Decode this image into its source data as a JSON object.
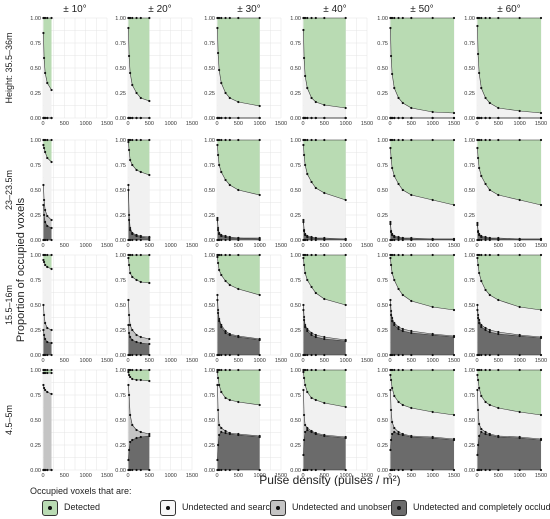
{
  "figure": {
    "xlabel": "Pulse density (pulses / m²)",
    "ylabel": "Proportion of occupied voxels",
    "columns": [
      "± 10°",
      "± 20°",
      "± 30°",
      "± 40°",
      "± 50°",
      "± 60°"
    ],
    "rows": [
      "Height:  35.5–36m",
      "23–23.5m",
      "15.5–16m",
      "4.5–5m"
    ],
    "y_ticks": [
      "0.00",
      "0.25",
      "0.50",
      "0.75",
      "1.00"
    ],
    "x_ticks": [
      "0",
      "500",
      "1000",
      "1500"
    ]
  },
  "legend": {
    "title": "Occupied voxels that are:",
    "items": [
      {
        "label": "Detected",
        "color": "#b9dbb3"
      },
      {
        "label": "Undetected and searched",
        "color": "#f1f1f1"
      },
      {
        "label": "Undetected and unobserved",
        "color": "#c4c4c4"
      },
      {
        "label": "Undetected and completely occluded",
        "color": "#6b6b6b"
      }
    ]
  },
  "chart_data": {
    "type": "area",
    "stacking": "cumulative proportion",
    "xlim": [
      0,
      1500
    ],
    "ylim": [
      0,
      1
    ],
    "grid": true,
    "colors": {
      "detected": "#b9dbb3",
      "searched": "#f1f1f1",
      "unobserved": "#c4c4c4",
      "occluded": "#6b6b6b"
    },
    "panels": [
      {
        "row": "Height:  35.5–36m",
        "column": "± 10°",
        "x": [
          10,
          25,
          50,
          100,
          200
        ],
        "occluded_upper": [
          0,
          0,
          0,
          0,
          0
        ],
        "unobserved_upper": [
          0,
          0,
          0,
          0,
          0
        ],
        "searched_upper": [
          0.85,
          0.6,
          0.45,
          0.35,
          0.28
        ]
      },
      {
        "row": "Height:  35.5–36m",
        "column": "± 20°",
        "x": [
          10,
          25,
          50,
          100,
          200,
          300,
          500
        ],
        "occluded_upper": [
          0,
          0,
          0,
          0,
          0,
          0,
          0
        ],
        "unobserved_upper": [
          0,
          0,
          0,
          0,
          0,
          0,
          0
        ],
        "searched_upper": [
          0.9,
          0.62,
          0.45,
          0.33,
          0.25,
          0.2,
          0.17
        ]
      },
      {
        "row": "Height:  35.5–36m",
        "column": "± 30°",
        "x": [
          10,
          25,
          50,
          100,
          200,
          300,
          500,
          1000
        ],
        "occluded_upper": [
          0,
          0,
          0,
          0,
          0,
          0,
          0,
          0
        ],
        "unobserved_upper": [
          0,
          0,
          0,
          0,
          0,
          0,
          0,
          0
        ],
        "searched_upper": [
          0.9,
          0.65,
          0.48,
          0.35,
          0.25,
          0.2,
          0.16,
          0.12
        ]
      },
      {
        "row": "Height:  35.5–36m",
        "column": "± 40°",
        "x": [
          10,
          25,
          50,
          100,
          200,
          300,
          500,
          1000
        ],
        "occluded_upper": [
          0,
          0,
          0,
          0,
          0,
          0,
          0,
          0
        ],
        "unobserved_upper": [
          0,
          0,
          0,
          0,
          0,
          0,
          0,
          0
        ],
        "searched_upper": [
          0.88,
          0.6,
          0.42,
          0.3,
          0.2,
          0.16,
          0.13,
          0.1
        ]
      },
      {
        "row": "Height:  35.5–36m",
        "column": "± 50°",
        "x": [
          10,
          25,
          50,
          100,
          200,
          300,
          500,
          1000,
          1500
        ],
        "occluded_upper": [
          0,
          0,
          0,
          0,
          0,
          0,
          0,
          0,
          0
        ],
        "unobserved_upper": [
          0,
          0,
          0,
          0,
          0,
          0,
          0,
          0,
          0
        ],
        "searched_upper": [
          0.9,
          0.62,
          0.44,
          0.3,
          0.2,
          0.15,
          0.1,
          0.06,
          0.05
        ]
      },
      {
        "row": "Height:  35.5–36m",
        "column": "± 60°",
        "x": [
          10,
          25,
          50,
          100,
          200,
          300,
          500,
          1000,
          1500
        ],
        "occluded_upper": [
          0,
          0,
          0,
          0,
          0,
          0,
          0,
          0,
          0
        ],
        "unobserved_upper": [
          0,
          0,
          0,
          0,
          0,
          0,
          0,
          0,
          0
        ],
        "searched_upper": [
          0.92,
          0.64,
          0.45,
          0.3,
          0.2,
          0.15,
          0.1,
          0.07,
          0.05
        ]
      },
      {
        "row": "23–23.5m",
        "column": "± 10°",
        "x": [
          10,
          25,
          50,
          100,
          200
        ],
        "occluded_upper": [
          0.35,
          0.25,
          0.18,
          0.14,
          0.12
        ],
        "unobserved_upper": [
          0.55,
          0.4,
          0.3,
          0.24,
          0.2
        ],
        "searched_upper": [
          0.95,
          0.92,
          0.88,
          0.82,
          0.78
        ]
      },
      {
        "row": "23–23.5m",
        "column": "± 20°",
        "x": [
          10,
          25,
          50,
          100,
          200,
          300,
          500
        ],
        "occluded_upper": [
          0.5,
          0.2,
          0.1,
          0.06,
          0.04,
          0.03,
          0.02
        ],
        "unobserved_upper": [
          0.55,
          0.25,
          0.12,
          0.07,
          0.05,
          0.04,
          0.03
        ],
        "searched_upper": [
          0.98,
          0.9,
          0.8,
          0.75,
          0.7,
          0.68,
          0.65
        ]
      },
      {
        "row": "23–23.5m",
        "column": "± 30°",
        "x": [
          10,
          25,
          50,
          100,
          200,
          300,
          500,
          1000
        ],
        "occluded_upper": [
          0.2,
          0.1,
          0.06,
          0.04,
          0.03,
          0.02,
          0.02,
          0.01
        ],
        "unobserved_upper": [
          0.22,
          0.12,
          0.07,
          0.05,
          0.04,
          0.03,
          0.02,
          0.02
        ],
        "searched_upper": [
          0.95,
          0.85,
          0.75,
          0.68,
          0.6,
          0.55,
          0.5,
          0.45
        ]
      },
      {
        "row": "23–23.5m",
        "column": "± 40°",
        "x": [
          10,
          25,
          50,
          100,
          200,
          300,
          500,
          1000
        ],
        "occluded_upper": [
          0.18,
          0.09,
          0.05,
          0.03,
          0.02,
          0.02,
          0.01,
          0.01
        ],
        "unobserved_upper": [
          0.2,
          0.1,
          0.06,
          0.04,
          0.03,
          0.02,
          0.02,
          0.01
        ],
        "searched_upper": [
          0.95,
          0.85,
          0.75,
          0.66,
          0.58,
          0.52,
          0.47,
          0.4
        ]
      },
      {
        "row": "23–23.5m",
        "column": "± 50°",
        "x": [
          10,
          25,
          50,
          100,
          200,
          300,
          500,
          1000,
          1500
        ],
        "occluded_upper": [
          0.16,
          0.08,
          0.05,
          0.03,
          0.02,
          0.02,
          0.01,
          0.01,
          0.01
        ],
        "unobserved_upper": [
          0.18,
          0.09,
          0.06,
          0.04,
          0.03,
          0.02,
          0.02,
          0.01,
          0.01
        ],
        "searched_upper": [
          0.92,
          0.82,
          0.72,
          0.64,
          0.56,
          0.5,
          0.45,
          0.4,
          0.35
        ]
      },
      {
        "row": "23–23.5m",
        "column": "± 60°",
        "x": [
          10,
          25,
          50,
          100,
          200,
          300,
          500,
          1000,
          1500
        ],
        "occluded_upper": [
          0.15,
          0.08,
          0.05,
          0.03,
          0.02,
          0.02,
          0.01,
          0.01,
          0.01
        ],
        "unobserved_upper": [
          0.17,
          0.09,
          0.06,
          0.04,
          0.03,
          0.02,
          0.02,
          0.01,
          0.01
        ],
        "searched_upper": [
          0.92,
          0.82,
          0.72,
          0.64,
          0.56,
          0.5,
          0.45,
          0.4,
          0.35
        ]
      },
      {
        "row": "15.5–16m",
        "column": "± 10°",
        "x": [
          10,
          25,
          50,
          100,
          200
        ],
        "occluded_upper": [
          0.25,
          0.2,
          0.16,
          0.13,
          0.12
        ],
        "unobserved_upper": [
          0.5,
          0.4,
          0.32,
          0.27,
          0.25
        ],
        "searched_upper": [
          0.95,
          0.93,
          0.9,
          0.88,
          0.86
        ]
      },
      {
        "row": "15.5–16m",
        "column": "± 20°",
        "x": [
          10,
          25,
          50,
          100,
          200,
          300,
          500
        ],
        "occluded_upper": [
          0.3,
          0.22,
          0.18,
          0.15,
          0.13,
          0.12,
          0.11
        ],
        "unobserved_upper": [
          0.55,
          0.4,
          0.3,
          0.25,
          0.2,
          0.18,
          0.16
        ],
        "searched_upper": [
          0.97,
          0.9,
          0.82,
          0.78,
          0.75,
          0.73,
          0.72
        ]
      },
      {
        "row": "15.5–16m",
        "column": "± 30°",
        "x": [
          10,
          25,
          50,
          100,
          200,
          300,
          500,
          1000
        ],
        "occluded_upper": [
          0.55,
          0.42,
          0.34,
          0.28,
          0.22,
          0.2,
          0.18,
          0.15
        ],
        "unobserved_upper": [
          0.6,
          0.45,
          0.36,
          0.3,
          0.24,
          0.21,
          0.19,
          0.16
        ],
        "searched_upper": [
          0.98,
          0.92,
          0.85,
          0.8,
          0.74,
          0.7,
          0.66,
          0.6
        ]
      },
      {
        "row": "15.5–16m",
        "column": "± 40°",
        "x": [
          10,
          25,
          50,
          100,
          200,
          300,
          500,
          1000
        ],
        "occluded_upper": [
          0.45,
          0.35,
          0.28,
          0.24,
          0.2,
          0.18,
          0.16,
          0.14
        ],
        "unobserved_upper": [
          0.5,
          0.38,
          0.3,
          0.26,
          0.22,
          0.2,
          0.18,
          0.15
        ],
        "searched_upper": [
          0.97,
          0.9,
          0.82,
          0.75,
          0.68,
          0.62,
          0.56,
          0.5
        ]
      },
      {
        "row": "15.5–16m",
        "column": "± 50°",
        "x": [
          10,
          25,
          50,
          100,
          200,
          300,
          500,
          1000,
          1500
        ],
        "occluded_upper": [
          0.5,
          0.4,
          0.34,
          0.3,
          0.26,
          0.24,
          0.22,
          0.2,
          0.18
        ],
        "unobserved_upper": [
          0.55,
          0.44,
          0.37,
          0.32,
          0.28,
          0.26,
          0.24,
          0.21,
          0.19
        ],
        "searched_upper": [
          0.97,
          0.9,
          0.82,
          0.75,
          0.66,
          0.6,
          0.54,
          0.48,
          0.45
        ]
      },
      {
        "row": "15.5–16m",
        "column": "± 60°",
        "x": [
          10,
          25,
          50,
          100,
          200,
          300,
          500,
          1000,
          1500
        ],
        "occluded_upper": [
          0.45,
          0.37,
          0.32,
          0.28,
          0.25,
          0.23,
          0.21,
          0.19,
          0.17
        ],
        "unobserved_upper": [
          0.5,
          0.4,
          0.35,
          0.3,
          0.27,
          0.25,
          0.23,
          0.2,
          0.18
        ],
        "searched_upper": [
          0.97,
          0.9,
          0.82,
          0.74,
          0.65,
          0.6,
          0.55,
          0.48,
          0.45
        ]
      },
      {
        "row": "4.5–5m",
        "column": "± 10°",
        "x": [
          10,
          25,
          50,
          100,
          200
        ],
        "occluded_upper": [
          0.0,
          0.0,
          0.0,
          0.0,
          0.0
        ],
        "unobserved_upper": [
          0.85,
          0.82,
          0.8,
          0.78,
          0.76
        ],
        "searched_upper": [
          0.97,
          0.97,
          0.97,
          0.97,
          0.97
        ]
      },
      {
        "row": "4.5–5m",
        "column": "± 20°",
        "x": [
          10,
          25,
          50,
          100,
          200,
          300,
          500
        ],
        "occluded_upper": [
          0.1,
          0.2,
          0.28,
          0.3,
          0.32,
          0.33,
          0.34
        ],
        "unobserved_upper": [
          0.85,
          0.75,
          0.55,
          0.45,
          0.4,
          0.38,
          0.36
        ],
        "searched_upper": [
          0.98,
          0.95,
          0.93,
          0.91,
          0.9,
          0.9,
          0.89
        ]
      },
      {
        "row": "4.5–5m",
        "column": "± 30°",
        "x": [
          10,
          25,
          50,
          100,
          200,
          300,
          500,
          1000
        ],
        "occluded_upper": [
          0.1,
          0.25,
          0.35,
          0.38,
          0.37,
          0.36,
          0.35,
          0.33
        ],
        "unobserved_upper": [
          0.85,
          0.6,
          0.45,
          0.42,
          0.39,
          0.37,
          0.36,
          0.34
        ],
        "searched_upper": [
          0.98,
          0.92,
          0.85,
          0.78,
          0.72,
          0.7,
          0.68,
          0.65
        ]
      },
      {
        "row": "4.5–5m",
        "column": "± 40°",
        "x": [
          10,
          25,
          50,
          100,
          200,
          300,
          500,
          1000
        ],
        "occluded_upper": [
          0.15,
          0.3,
          0.38,
          0.4,
          0.38,
          0.36,
          0.34,
          0.32
        ],
        "unobserved_upper": [
          0.8,
          0.55,
          0.45,
          0.42,
          0.39,
          0.37,
          0.35,
          0.33
        ],
        "searched_upper": [
          0.98,
          0.92,
          0.85,
          0.78,
          0.72,
          0.7,
          0.67,
          0.63
        ]
      },
      {
        "row": "4.5–5m",
        "column": "± 50°",
        "x": [
          10,
          25,
          50,
          100,
          200,
          300,
          500,
          1000,
          1500
        ],
        "occluded_upper": [
          0.2,
          0.3,
          0.36,
          0.38,
          0.36,
          0.35,
          0.33,
          0.32,
          0.3
        ],
        "unobserved_upper": [
          0.8,
          0.6,
          0.48,
          0.42,
          0.38,
          0.36,
          0.34,
          0.33,
          0.31
        ],
        "searched_upper": [
          0.95,
          0.9,
          0.82,
          0.74,
          0.68,
          0.65,
          0.62,
          0.58,
          0.55
        ]
      },
      {
        "row": "4.5–5m",
        "column": "± 60°",
        "x": [
          10,
          25,
          50,
          100,
          200,
          300,
          500,
          1000,
          1500
        ],
        "occluded_upper": [
          0.15,
          0.25,
          0.34,
          0.38,
          0.36,
          0.35,
          0.33,
          0.32,
          0.3
        ],
        "unobserved_upper": [
          0.8,
          0.6,
          0.46,
          0.41,
          0.38,
          0.36,
          0.34,
          0.33,
          0.31
        ],
        "searched_upper": [
          0.95,
          0.9,
          0.82,
          0.74,
          0.68,
          0.65,
          0.62,
          0.58,
          0.55
        ]
      }
    ]
  }
}
